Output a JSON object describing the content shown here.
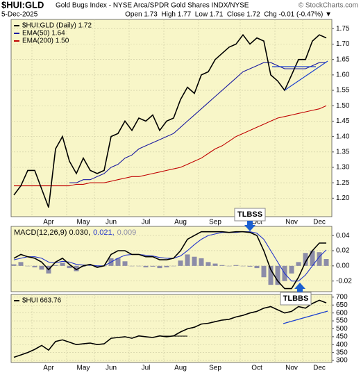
{
  "header": {
    "symbol": "$HUI:GLD",
    "name": "Gold Bugs Index - NYSE Arca/SPDR Gold Shares INDX/NYSE",
    "credit": "© StockCharts.com",
    "date": "5-Dec-2025",
    "quote": "Open 1.73  High 1.77  Low 1.71  Close 1.72  Chg -0.01 (-0.47%) ▼"
  },
  "chart_data": [
    {
      "type": "line",
      "categories": [
        null,
        null,
        null,
        null,
        null,
        "Apr",
        null,
        null,
        null,
        null,
        "May",
        null,
        null,
        null,
        "Jun",
        null,
        null,
        null,
        null,
        "Jul",
        null,
        null,
        null,
        null,
        "Aug",
        null,
        null,
        null,
        null,
        "Sep",
        null,
        null,
        null,
        null,
        null,
        "Oct",
        null,
        null,
        null,
        null,
        "Nov",
        null,
        null,
        null,
        "Dec",
        null
      ],
      "ylim": [
        1.14,
        1.78
      ],
      "yticks": [
        {
          "value": 1.2,
          "label": "1.20"
        },
        {
          "value": 1.25,
          "label": "1.25"
        },
        {
          "value": 1.3,
          "label": "1.30"
        },
        {
          "value": 1.35,
          "label": "1.35"
        },
        {
          "value": 1.4,
          "label": "1.40"
        },
        {
          "value": 1.45,
          "label": "1.45"
        },
        {
          "value": 1.5,
          "label": "1.50"
        },
        {
          "value": 1.55,
          "label": "1.55"
        },
        {
          "value": 1.6,
          "label": "1.60"
        },
        {
          "value": 1.65,
          "label": "1.65"
        },
        {
          "value": 1.7,
          "label": "1.70"
        },
        {
          "value": 1.75,
          "label": "1.75"
        }
      ],
      "grid": true,
      "series": [
        {
          "name": "$HUI:GLD (Daily) 1.72",
          "color": "#000000",
          "values": [
            1.21,
            1.24,
            1.29,
            1.29,
            1.23,
            1.17,
            1.36,
            1.4,
            1.32,
            1.28,
            1.33,
            1.29,
            1.28,
            1.29,
            1.4,
            1.41,
            1.45,
            1.42,
            1.46,
            1.45,
            1.47,
            1.42,
            1.45,
            1.46,
            1.52,
            1.56,
            1.54,
            1.6,
            1.61,
            1.65,
            1.67,
            1.69,
            1.7,
            1.73,
            1.7,
            1.72,
            1.71,
            1.6,
            1.58,
            1.55,
            1.6,
            1.65,
            1.65,
            1.71,
            1.73,
            1.72
          ]
        },
        {
          "name": "EMA(50) 1.64",
          "color": "#1a1aa0",
          "values": [
            null,
            null,
            null,
            null,
            null,
            null,
            null,
            null,
            1.25,
            1.25,
            1.26,
            1.26,
            1.27,
            1.28,
            1.3,
            1.31,
            1.33,
            1.34,
            1.36,
            1.37,
            1.38,
            1.39,
            1.4,
            1.41,
            1.43,
            1.45,
            1.47,
            1.49,
            1.51,
            1.53,
            1.55,
            1.57,
            1.59,
            1.61,
            1.62,
            1.63,
            1.64,
            1.64,
            1.63,
            1.62,
            1.62,
            1.62,
            1.62,
            1.63,
            1.64,
            1.64
          ]
        },
        {
          "name": "EMA(200) 1.50",
          "color": "#c00000",
          "values": [
            1.24,
            1.24,
            1.24,
            1.24,
            1.24,
            1.24,
            1.24,
            1.24,
            1.24,
            1.245,
            1.245,
            1.25,
            1.25,
            1.25,
            1.255,
            1.26,
            1.265,
            1.27,
            1.27,
            1.275,
            1.28,
            1.285,
            1.29,
            1.295,
            1.3,
            1.31,
            1.32,
            1.33,
            1.345,
            1.36,
            1.37,
            1.385,
            1.4,
            1.41,
            1.42,
            1.43,
            1.44,
            1.45,
            1.46,
            1.465,
            1.47,
            1.475,
            1.48,
            1.485,
            1.49,
            1.5
          ]
        }
      ]
    },
    {
      "type": "line",
      "ylim": [
        -0.034,
        0.052
      ],
      "yticks": [
        0.04,
        0.02,
        {
          "value": 0,
          "label": "0.00"
        },
        -0.02
      ],
      "grid": true,
      "annotation": "TLBSS",
      "series": [
        {
          "name": "MACD(12,26,9) 0.030,",
          "color": "#000000",
          "kind": "line",
          "values": [
            0.01,
            0.015,
            0.012,
            0.01,
            0.005,
            -0.005,
            0.005,
            0.01,
            0.002,
            -0.005,
            0.0,
            0.002,
            -0.002,
            0.0,
            0.015,
            0.02,
            0.02,
            0.015,
            0.015,
            0.012,
            0.012,
            0.008,
            0.008,
            0.01,
            0.02,
            0.035,
            0.04,
            0.045,
            0.045,
            0.045,
            0.045,
            0.044,
            0.045,
            0.045,
            0.044,
            0.04,
            0.02,
            -0.005,
            -0.02,
            -0.03,
            -0.03,
            -0.015,
            0.005,
            0.02,
            0.03,
            0.03
          ]
        },
        {
          "name": "0.021,",
          "color": "#2233cc",
          "kind": "line",
          "values": [
            0.008,
            0.01,
            0.012,
            0.012,
            0.01,
            0.005,
            0.004,
            0.006,
            0.005,
            0.002,
            0.001,
            0.001,
            0.0,
            0.0,
            0.005,
            0.01,
            0.014,
            0.015,
            0.015,
            0.014,
            0.013,
            0.011,
            0.01,
            0.01,
            0.013,
            0.02,
            0.028,
            0.035,
            0.04,
            0.042,
            0.044,
            0.044,
            0.044,
            0.045,
            0.045,
            0.043,
            0.035,
            0.02,
            0.005,
            -0.01,
            -0.02,
            -0.02,
            -0.012,
            0.0,
            0.012,
            0.021
          ]
        },
        {
          "name": "0.009",
          "color": "#8c8ca8",
          "kind": "bar",
          "values": [
            0.002,
            0.005,
            0,
            -0.002,
            -0.005,
            -0.01,
            0.001,
            0.004,
            -0.003,
            -0.007,
            -0.001,
            0.001,
            -0.002,
            0,
            0.01,
            0.01,
            0.006,
            0,
            0,
            -0.002,
            -0.001,
            -0.003,
            -0.002,
            0,
            0.007,
            0.015,
            0.012,
            0.01,
            0.005,
            0.003,
            0.001,
            0,
            0.001,
            0,
            -0.001,
            -0.003,
            -0.015,
            -0.025,
            -0.025,
            -0.02,
            -0.01,
            0.005,
            0.017,
            0.02,
            0.018,
            0.009
          ]
        }
      ]
    },
    {
      "type": "line",
      "categories": [
        null,
        null,
        null,
        null,
        null,
        "Apr",
        null,
        null,
        null,
        null,
        "May",
        null,
        null,
        null,
        "Jun",
        null,
        null,
        null,
        null,
        "Jul",
        null,
        null,
        null,
        null,
        "Aug",
        null,
        null,
        null,
        null,
        "Sep",
        null,
        null,
        null,
        null,
        null,
        "Oct",
        null,
        null,
        null,
        null,
        "Nov",
        null,
        null,
        null,
        "Dec",
        null
      ],
      "ylim": [
        287,
        717
      ],
      "yticks": [
        700,
        650,
        600,
        550,
        500,
        450,
        400,
        350,
        300
      ],
      "grid": true,
      "annotation": "TLBBS",
      "series": [
        {
          "name": "$HUI 663.76",
          "color": "#000000",
          "values": [
            320,
            335,
            350,
            370,
            395,
            365,
            420,
            430,
            415,
            400,
            405,
            410,
            400,
            405,
            440,
            445,
            450,
            440,
            455,
            450,
            445,
            455,
            450,
            455,
            480,
            500,
            510,
            530,
            535,
            545,
            555,
            560,
            575,
            585,
            600,
            610,
            630,
            640,
            620,
            600,
            610,
            640,
            630,
            660,
            680,
            663.76
          ]
        }
      ]
    }
  ]
}
